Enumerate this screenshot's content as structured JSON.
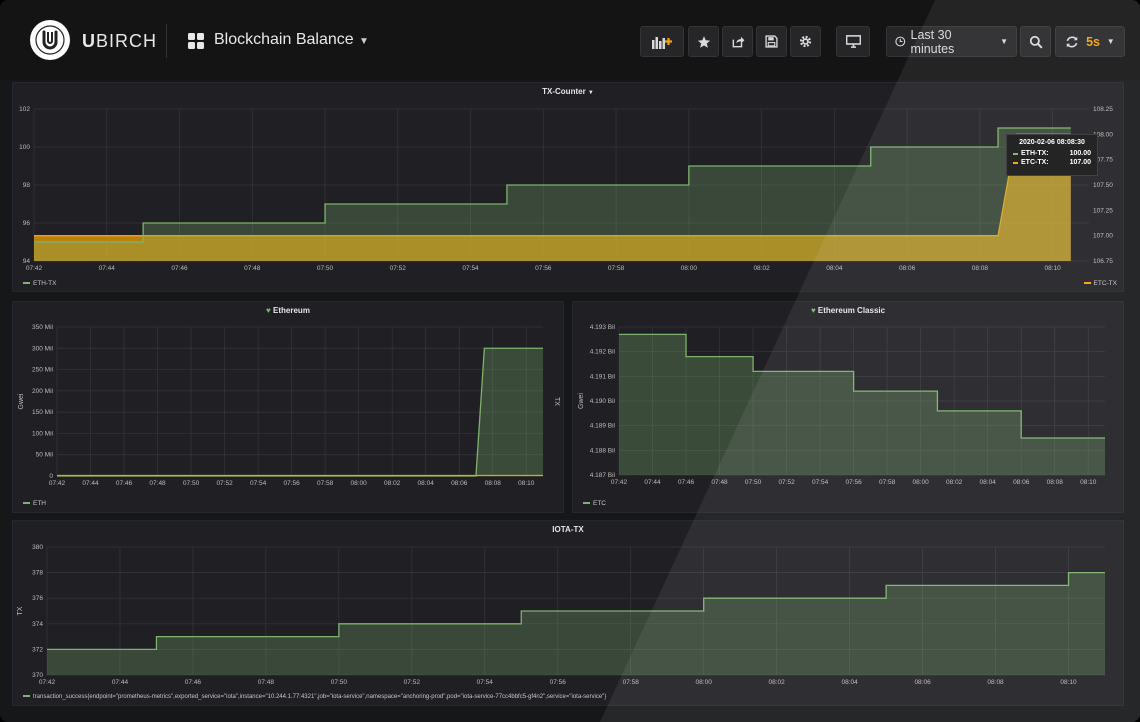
{
  "brand": {
    "name": "UBIRCH",
    "name_bold": "U",
    "name_rest": "BIRCH"
  },
  "dashboard": {
    "title": "Blockchain Balance"
  },
  "toolbar": {
    "add_panel_icon": "bar-chart-add-icon",
    "star_icon": "star-icon",
    "share_icon": "share-icon",
    "save_icon": "save-icon",
    "settings_icon": "gear-icon",
    "tv_icon": "monitor-icon",
    "time_range": "Last 30 minutes",
    "zoom_icon": "search-icon",
    "refresh_icon": "refresh-icon",
    "refresh_interval": "5s"
  },
  "colors": {
    "eth": "#7eb26d",
    "etc": "#f0a30a",
    "bg": "#161719",
    "panel": "#1f1f24"
  },
  "time_ticks": [
    "07:42",
    "07:44",
    "07:46",
    "07:48",
    "07:50",
    "07:52",
    "07:54",
    "07:56",
    "07:58",
    "08:00",
    "08:02",
    "08:04",
    "08:06",
    "08:08",
    "08:10"
  ],
  "tooltip": {
    "date": "2020-02-06 08:08:30",
    "rows": [
      {
        "label": "ETH-TX:",
        "value": "100.00"
      },
      {
        "label": "ETC-TX:",
        "value": "107.00"
      }
    ]
  },
  "panels": {
    "tx_counter": {
      "title": "TX-Counter",
      "legend_left": "ETH-TX",
      "legend_right": "ETC-TX"
    },
    "ethereum": {
      "title": "Ethereum",
      "legend": "ETH"
    },
    "ethereum_classic": {
      "title": "Ethereum Classic",
      "legend": "ETC"
    },
    "iota_tx": {
      "title": "IOTA-TX",
      "legend": "transaction_success{endpoint=\"prometheus-metrics\",exported_service=\"iota\",instance=\"10.244.1.77:4321\",job=\"iota-service\",namespace=\"anchoring-prod\",pod=\"iota-service-77cc4bbfc5-gf4n2\",service=\"iota-service\"}"
    }
  },
  "chart_data": [
    {
      "type": "area",
      "panel": "TX-Counter",
      "x": [
        "07:42",
        "07:44",
        "07:45",
        "07:48",
        "07:50",
        "07:52",
        "07:55",
        "07:58",
        "08:00",
        "08:02",
        "08:04",
        "08:06",
        "08:08",
        "08:08:30",
        "08:09",
        "08:10",
        "08:10:30"
      ],
      "yticks_left": [
        "94",
        "96",
        "98",
        "100",
        "102"
      ],
      "yticks_right": [
        "106.75",
        "107.00",
        "107.25",
        "107.50",
        "107.75",
        "108.00",
        "108.25"
      ],
      "ylim_left": [
        94,
        102
      ],
      "ylim_right": [
        106.75,
        108.25
      ],
      "series": [
        {
          "name": "ETH-TX",
          "axis": "left",
          "x": [
            "07:42",
            "07:45",
            "07:45",
            "07:50",
            "07:50",
            "07:55",
            "07:55",
            "08:00",
            "08:00",
            "08:05",
            "08:05",
            "08:08:30",
            "08:08:30",
            "08:10:30"
          ],
          "values": [
            95,
            95,
            96,
            96,
            97,
            97,
            98,
            98,
            99,
            99,
            100,
            100,
            101,
            101
          ]
        },
        {
          "name": "ETC-TX",
          "axis": "right",
          "x": [
            "07:42",
            "08:08:30",
            "08:09",
            "08:10:30"
          ],
          "values": [
            107.0,
            107.0,
            108.0,
            108.0
          ]
        }
      ]
    },
    {
      "type": "area",
      "panel": "Ethereum",
      "ylabel": "Gwei",
      "y2label": "TX",
      "yticks": [
        "0",
        "50 Mil",
        "100 Mil",
        "150 Mil",
        "200 Mil",
        "250 Mil",
        "300 Mil",
        "350 Mil"
      ],
      "ylim": [
        0,
        350
      ],
      "series": [
        {
          "name": "ETH",
          "x": [
            "07:42",
            "08:07",
            "08:07:30",
            "08:11"
          ],
          "values": [
            0,
            0,
            300,
            300
          ]
        }
      ]
    },
    {
      "type": "area",
      "panel": "Ethereum Classic",
      "ylabel": "Gwei",
      "yticks": [
        "4.187 Bil",
        "4.188 Bil",
        "4.189 Bil",
        "4.190 Bil",
        "4.191 Bil",
        "4.192 Bil",
        "4.193 Bil"
      ],
      "ylim": [
        4.187,
        4.193
      ],
      "series": [
        {
          "name": "ETC",
          "x": [
            "07:42",
            "07:46",
            "07:46",
            "07:50",
            "07:50",
            "07:56",
            "07:56",
            "08:01",
            "08:01",
            "08:06",
            "08:06",
            "08:11"
          ],
          "values": [
            4.1927,
            4.1927,
            4.1918,
            4.1918,
            4.1912,
            4.1912,
            4.1904,
            4.1904,
            4.1896,
            4.1896,
            4.1885,
            4.1885
          ]
        }
      ]
    },
    {
      "type": "area",
      "panel": "IOTA-TX",
      "ylabel": "TX",
      "yticks": [
        "370",
        "372",
        "374",
        "376",
        "378",
        "380"
      ],
      "ylim": [
        370,
        380
      ],
      "series": [
        {
          "name": "transaction_success",
          "x": [
            "07:42",
            "07:45",
            "07:45",
            "07:50",
            "07:50",
            "07:55",
            "07:55",
            "08:00",
            "08:00",
            "08:05",
            "08:05",
            "08:10",
            "08:10",
            "08:11"
          ],
          "values": [
            372,
            372,
            373,
            373,
            374,
            374,
            375,
            375,
            376,
            376,
            377,
            377,
            378,
            378
          ]
        }
      ]
    }
  ]
}
